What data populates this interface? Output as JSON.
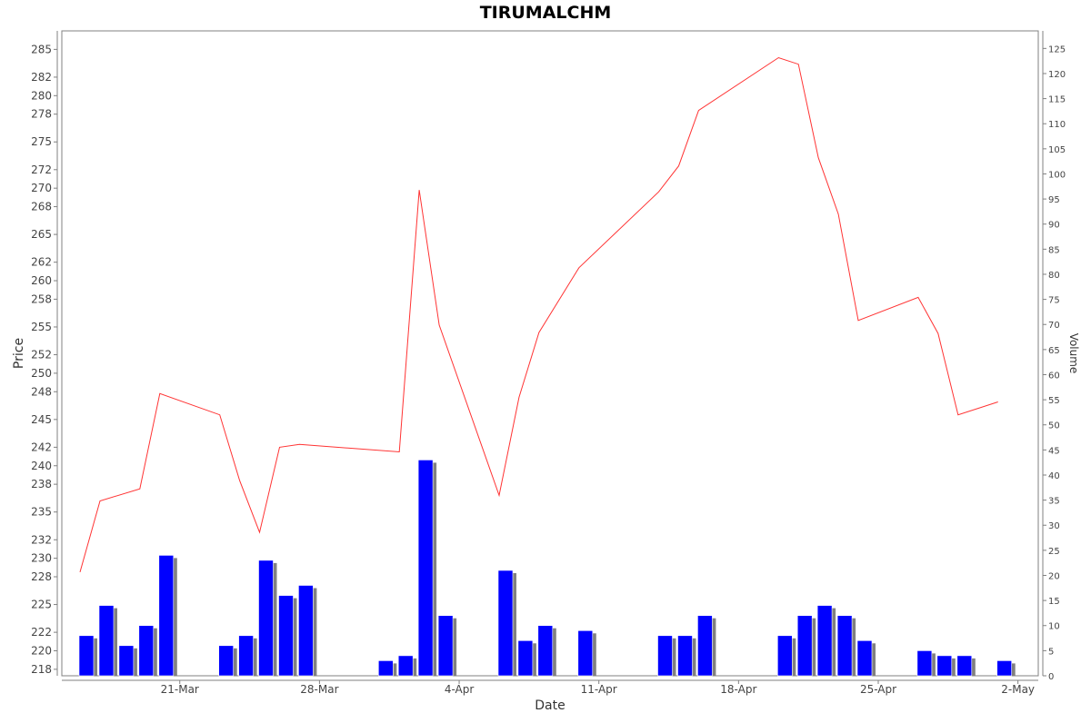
{
  "chart_data": {
    "type": "line+bar",
    "title": "TIRUMALCHM",
    "xlabel": "Date",
    "ylabel_left": "Price",
    "ylabel_right": "Volume",
    "x_tick_labels": [
      "21-Mar",
      "28-Mar",
      "4-Apr",
      "11-Apr",
      "18-Apr",
      "25-Apr",
      "2-May"
    ],
    "y_left_ticks": [
      "218",
      "220",
      "222",
      "225",
      "228",
      "230",
      "232",
      "235",
      "238",
      "240",
      "242",
      "245",
      "248",
      "250",
      "252",
      "255",
      "258",
      "260",
      "262",
      "265",
      "268",
      "270",
      "272",
      "275",
      "278",
      "280",
      "282",
      "285"
    ],
    "y_right_ticks": [
      "0",
      "5",
      "10",
      "15",
      "20",
      "25",
      "30",
      "35",
      "40",
      "45",
      "50",
      "55",
      "60",
      "65",
      "70",
      "75",
      "80",
      "85",
      "90",
      "95",
      "100",
      "105",
      "110",
      "115",
      "120",
      "125"
    ],
    "ylim_left": [
      217.3,
      287
    ],
    "ylim_right": [
      0,
      128.5
    ],
    "grid": false,
    "colors": {
      "price_line": "#ff3333",
      "volume_bar": "#0000ff",
      "volume_shadow": "#808080"
    },
    "series": [
      {
        "axis": "left",
        "kind": "line",
        "points": [
          {
            "x": "2024-03-16",
            "y": 228.5
          },
          {
            "x": "2024-03-17",
            "y": 236.2
          },
          {
            "x": "2024-03-19",
            "y": 237.5
          },
          {
            "x": "2024-03-20",
            "y": 247.8
          },
          {
            "x": "2024-03-23",
            "y": 245.5
          },
          {
            "x": "2024-03-24",
            "y": 238.4
          },
          {
            "x": "2024-03-25",
            "y": 232.8
          },
          {
            "x": "2024-03-26",
            "y": 242.0
          },
          {
            "x": "2024-03-27",
            "y": 242.3
          },
          {
            "x": "2024-04-01",
            "y": 241.5
          },
          {
            "x": "2024-04-02",
            "y": 269.8
          },
          {
            "x": "2024-04-03",
            "y": 255.2
          },
          {
            "x": "2024-04-06",
            "y": 236.8
          },
          {
            "x": "2024-04-07",
            "y": 247.4
          },
          {
            "x": "2024-04-08",
            "y": 254.4
          },
          {
            "x": "2024-04-10",
            "y": 261.4
          },
          {
            "x": "2024-04-14",
            "y": 269.6
          },
          {
            "x": "2024-04-15",
            "y": 272.4
          },
          {
            "x": "2024-04-16",
            "y": 278.4
          },
          {
            "x": "2024-04-20",
            "y": 284.1
          },
          {
            "x": "2024-04-21",
            "y": 283.4
          },
          {
            "x": "2024-04-22",
            "y": 273.3
          },
          {
            "x": "2024-04-23",
            "y": 267.2
          },
          {
            "x": "2024-04-24",
            "y": 255.7
          },
          {
            "x": "2024-04-27",
            "y": 258.2
          },
          {
            "x": "2024-04-28",
            "y": 254.3
          },
          {
            "x": "2024-04-29",
            "y": 245.5
          },
          {
            "x": "2024-05-01",
            "y": 246.9
          }
        ]
      },
      {
        "axis": "right",
        "kind": "bar",
        "points": [
          {
            "x": "2024-03-16",
            "y": 8
          },
          {
            "x": "2024-03-17",
            "y": 14
          },
          {
            "x": "2024-03-18",
            "y": 6
          },
          {
            "x": "2024-03-19",
            "y": 10
          },
          {
            "x": "2024-03-20",
            "y": 24
          },
          {
            "x": "2024-03-23",
            "y": 6
          },
          {
            "x": "2024-03-24",
            "y": 8
          },
          {
            "x": "2024-03-25",
            "y": 23
          },
          {
            "x": "2024-03-26",
            "y": 16
          },
          {
            "x": "2024-03-27",
            "y": 18
          },
          {
            "x": "2024-03-31",
            "y": 3
          },
          {
            "x": "2024-04-01",
            "y": 4
          },
          {
            "x": "2024-04-02",
            "y": 43
          },
          {
            "x": "2024-04-03",
            "y": 12
          },
          {
            "x": "2024-04-06",
            "y": 21
          },
          {
            "x": "2024-04-07",
            "y": 7
          },
          {
            "x": "2024-04-08",
            "y": 10
          },
          {
            "x": "2024-04-10",
            "y": 9
          },
          {
            "x": "2024-04-14",
            "y": 8
          },
          {
            "x": "2024-04-15",
            "y": 8
          },
          {
            "x": "2024-04-16",
            "y": 12
          },
          {
            "x": "2024-04-20",
            "y": 8
          },
          {
            "x": "2024-04-21",
            "y": 12
          },
          {
            "x": "2024-04-22",
            "y": 14
          },
          {
            "x": "2024-04-23",
            "y": 12
          },
          {
            "x": "2024-04-24",
            "y": 7
          },
          {
            "x": "2024-04-27",
            "y": 5
          },
          {
            "x": "2024-04-28",
            "y": 4
          },
          {
            "x": "2024-04-29",
            "y": 4
          },
          {
            "x": "2024-05-01",
            "y": 3
          }
        ]
      }
    ]
  }
}
